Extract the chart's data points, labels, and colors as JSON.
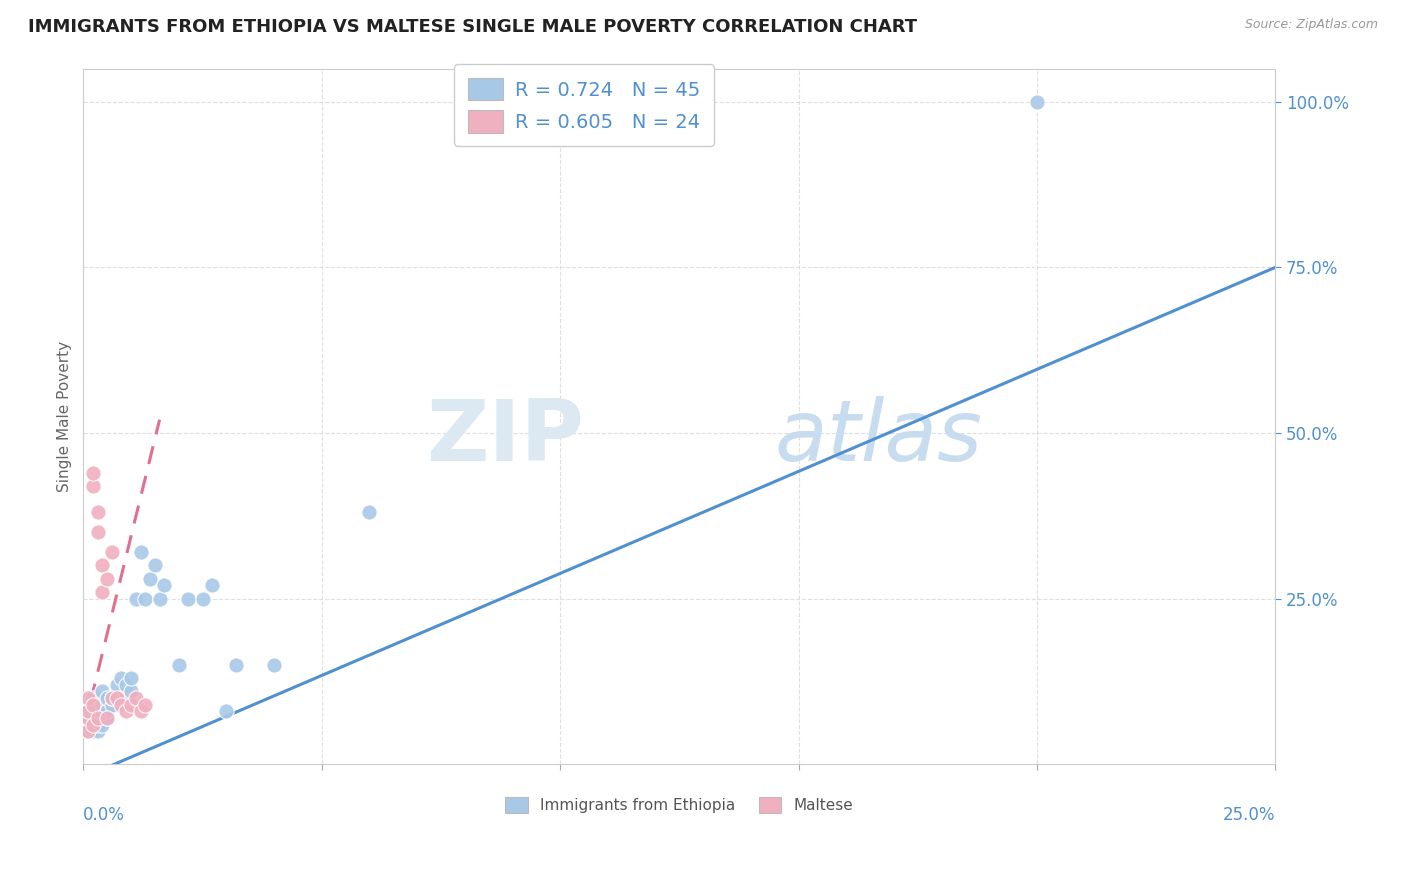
{
  "title": "IMMIGRANTS FROM ETHIOPIA VS MALTESE SINGLE MALE POVERTY CORRELATION CHART",
  "source": "Source: ZipAtlas.com",
  "ylabel": "Single Male Poverty",
  "legend_label1": "Immigrants from Ethiopia",
  "legend_label2": "Maltese",
  "r1": 0.724,
  "n1": 45,
  "r2": 0.605,
  "n2": 24,
  "blue_color": "#A8C8E8",
  "pink_color": "#F0B0C0",
  "blue_line_color": "#5090D0",
  "pink_line_color": "#E07090",
  "blue_scatter_x": [
    0.001,
    0.001,
    0.001,
    0.001,
    0.002,
    0.002,
    0.002,
    0.002,
    0.002,
    0.003,
    0.003,
    0.003,
    0.003,
    0.004,
    0.004,
    0.004,
    0.004,
    0.005,
    0.005,
    0.005,
    0.006,
    0.006,
    0.007,
    0.007,
    0.008,
    0.008,
    0.009,
    0.01,
    0.01,
    0.011,
    0.012,
    0.013,
    0.014,
    0.015,
    0.016,
    0.017,
    0.02,
    0.022,
    0.025,
    0.027,
    0.03,
    0.032,
    0.04,
    0.06,
    0.2
  ],
  "blue_scatter_y": [
    0.05,
    0.06,
    0.07,
    0.08,
    0.05,
    0.06,
    0.07,
    0.09,
    0.1,
    0.05,
    0.06,
    0.08,
    0.1,
    0.06,
    0.08,
    0.09,
    0.11,
    0.07,
    0.08,
    0.1,
    0.09,
    0.1,
    0.1,
    0.12,
    0.1,
    0.13,
    0.12,
    0.11,
    0.13,
    0.25,
    0.32,
    0.25,
    0.28,
    0.3,
    0.25,
    0.27,
    0.15,
    0.25,
    0.25,
    0.27,
    0.08,
    0.15,
    0.15,
    0.38,
    1.0
  ],
  "pink_scatter_x": [
    0.001,
    0.001,
    0.001,
    0.001,
    0.002,
    0.002,
    0.002,
    0.002,
    0.003,
    0.003,
    0.003,
    0.004,
    0.004,
    0.005,
    0.005,
    0.006,
    0.006,
    0.007,
    0.008,
    0.009,
    0.01,
    0.011,
    0.012,
    0.013
  ],
  "pink_scatter_y": [
    0.05,
    0.07,
    0.08,
    0.1,
    0.06,
    0.09,
    0.42,
    0.44,
    0.07,
    0.35,
    0.38,
    0.26,
    0.3,
    0.07,
    0.28,
    0.1,
    0.32,
    0.1,
    0.09,
    0.08,
    0.09,
    0.1,
    0.08,
    0.09
  ],
  "blue_line_x0": 0.0,
  "blue_line_y0": -0.02,
  "blue_line_x1": 0.25,
  "blue_line_y1": 0.75,
  "pink_line_x0": 0.0,
  "pink_line_y0": 0.05,
  "pink_line_x1": 0.016,
  "pink_line_y1": 0.52,
  "xlim": [
    0.0,
    0.25
  ],
  "ylim": [
    0.0,
    1.05
  ],
  "ytick_positions": [
    0.25,
    0.5,
    0.75,
    1.0
  ],
  "ytick_labels": [
    "25.0%",
    "50.0%",
    "75.0%",
    "100.0%"
  ]
}
